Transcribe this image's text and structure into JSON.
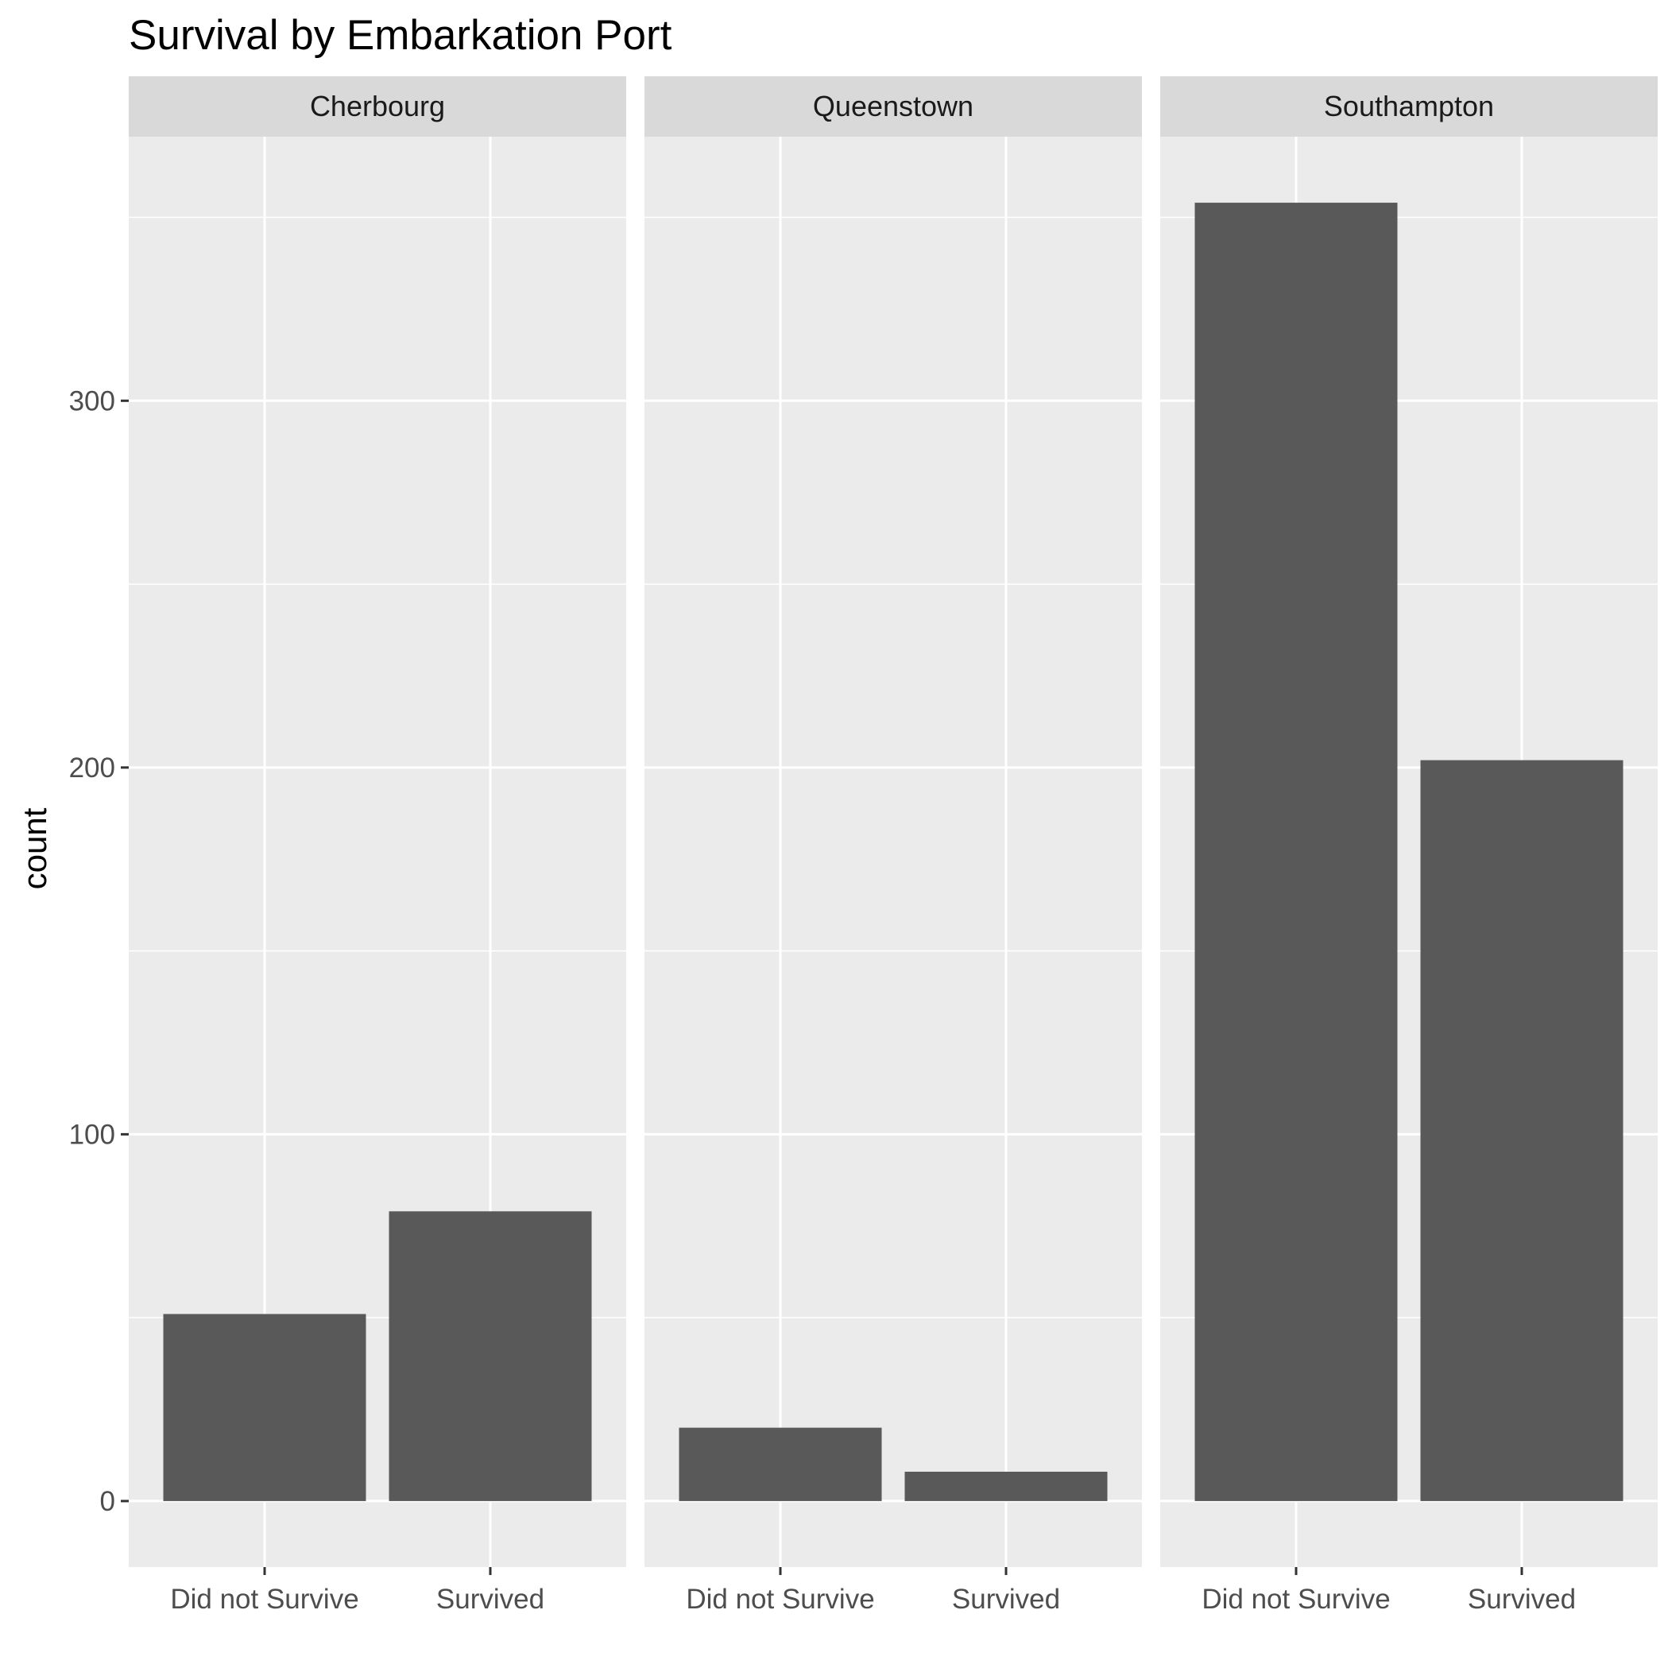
{
  "chart_data": {
    "type": "bar",
    "title": "Survival by Embarkation Port",
    "xlabel": "",
    "ylabel": "count",
    "ylim": [
      -18,
      372
    ],
    "yticks": [
      0,
      100,
      200,
      300
    ],
    "grid": true,
    "legend": "none",
    "categories": [
      "Did not Survive",
      "Survived"
    ],
    "facets": [
      {
        "name": "Cherbourg",
        "values": [
          51,
          79
        ]
      },
      {
        "name": "Queenstown",
        "values": [
          20,
          8
        ]
      },
      {
        "name": "Southampton",
        "values": [
          354,
          202
        ]
      }
    ]
  },
  "colors": {
    "panel_bg": "#ebebeb",
    "strip_bg": "#d9d9d9",
    "gridline": "#ffffff",
    "bar_fill": "#595959",
    "axis_tick": "#333333"
  }
}
